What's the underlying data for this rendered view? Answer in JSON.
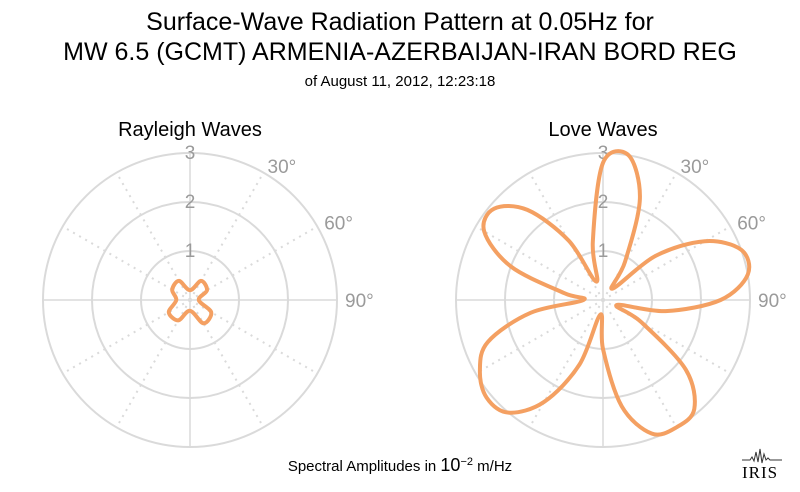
{
  "title_line1": "Surface-Wave Radiation Pattern at 0.05Hz for",
  "title_line2": "MW 6.5 (GCMT) ARMENIA-AZERBAIJAN-IRAN BORD REG",
  "subtitle": "of August 11, 2012, 12:23:18",
  "footer": {
    "prefix": "Spectral Amplitudes in ",
    "base": "10",
    "exponent": "−2",
    "unit": " m/Hz"
  },
  "logo_text": "IRIS",
  "colors": {
    "curve": "#F4A062",
    "grid": "#DADADA",
    "label": "#9A9A9A"
  },
  "chart_data": [
    {
      "type": "polar-line",
      "title": "Rayleigh Waves",
      "r_ticks": [
        1,
        2,
        3
      ],
      "r_max": 3,
      "angle_labels": [
        "30°",
        "60°",
        "90°"
      ],
      "angle_zero": "top",
      "direction": "clockwise",
      "grid_spokes_deg": [
        0,
        30,
        60,
        90,
        120,
        150,
        180,
        210,
        240,
        270,
        300,
        330
      ],
      "series": [
        {
          "theta_deg": [
            0,
            30,
            60,
            90,
            120,
            150,
            180,
            210,
            240,
            270,
            300,
            330
          ],
          "r": [
            0.2,
            0.45,
            0.4,
            0.18,
            0.5,
            0.55,
            0.22,
            0.48,
            0.5,
            0.28,
            0.42,
            0.45
          ]
        }
      ]
    },
    {
      "type": "polar-line",
      "title": "Love Waves",
      "r_ticks": [
        1,
        2,
        3
      ],
      "r_max": 3,
      "angle_labels": [
        "30°",
        "60°",
        "90°"
      ],
      "angle_zero": "top",
      "direction": "clockwise",
      "grid_spokes_deg": [
        0,
        30,
        60,
        90,
        120,
        150,
        180,
        210,
        240,
        270,
        300,
        330
      ],
      "series": [
        {
          "theta_deg": [
            0,
            10,
            20,
            30,
            40,
            50,
            60,
            70,
            80,
            90,
            100,
            110,
            120,
            130,
            140,
            150,
            160,
            170,
            180,
            190,
            200,
            210,
            220,
            230,
            240,
            250,
            260,
            270,
            280,
            290,
            300,
            310,
            320,
            330,
            340,
            350
          ],
          "r": [
            2.8,
            3.0,
            2.2,
            0.9,
            0.3,
            1.4,
            2.4,
            3.0,
            3.0,
            2.4,
            1.3,
            0.3,
            0.9,
            2.2,
            2.9,
            3.0,
            2.9,
            2.2,
            1.0,
            0.3,
            1.4,
            2.4,
            3.0,
            3.1,
            2.9,
            2.5,
            1.5,
            0.4,
            0.8,
            2.0,
            2.8,
            2.9,
            2.4,
            1.4,
            0.4,
            1.2
          ]
        }
      ]
    }
  ]
}
